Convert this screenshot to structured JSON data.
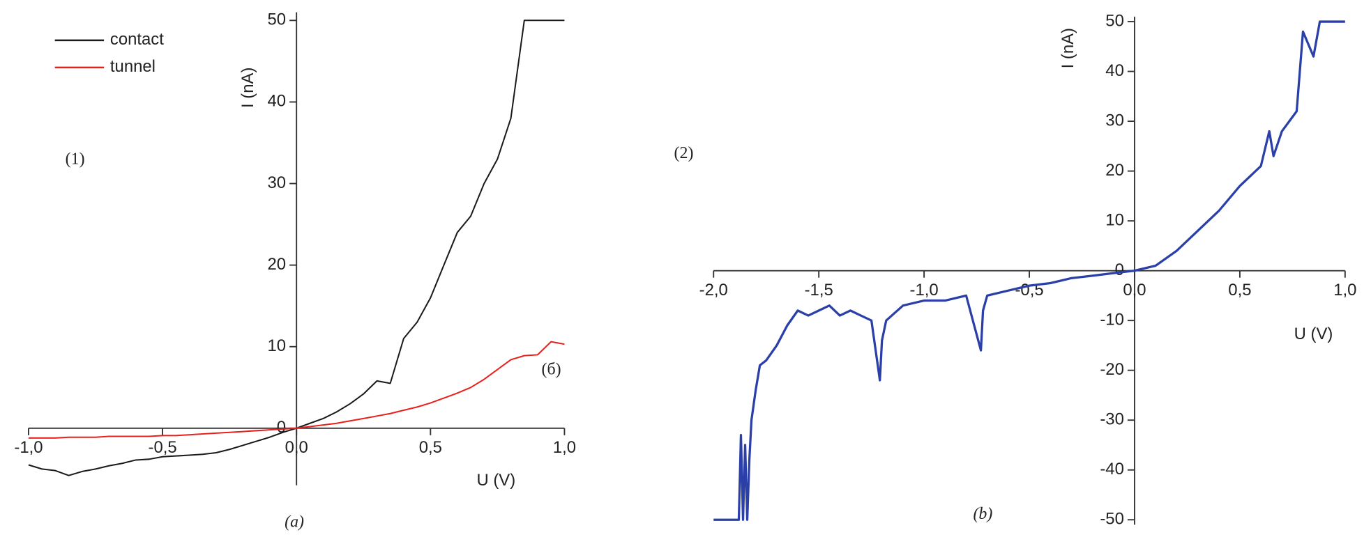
{
  "chart_data": [
    {
      "type": "line",
      "xlabel": "U (V)",
      "ylabel": "I (nA)",
      "annotations": [
        "(1)",
        "(a)",
        "(б)"
      ],
      "x": [
        -1.0,
        -0.95,
        -0.9,
        -0.85,
        -0.8,
        -0.75,
        -0.7,
        -0.65,
        -0.6,
        -0.55,
        -0.5,
        -0.45,
        -0.4,
        -0.35,
        -0.3,
        -0.25,
        -0.2,
        -0.15,
        -0.1,
        -0.05,
        0,
        0.05,
        0.1,
        0.15,
        0.2,
        0.25,
        0.3,
        0.35,
        0.4,
        0.45,
        0.5,
        0.55,
        0.6,
        0.65,
        0.7,
        0.75,
        0.8,
        0.85,
        0.9,
        0.95,
        1.0
      ],
      "series": [
        {
          "name": "contact",
          "color": "#1a1a1a",
          "values": [
            -4.5,
            -5.0,
            -5.2,
            -5.8,
            -5.3,
            -5.0,
            -4.6,
            -4.3,
            -3.9,
            -3.8,
            -3.5,
            -3.4,
            -3.3,
            -3.2,
            -3.0,
            -2.6,
            -2.1,
            -1.6,
            -1.1,
            -0.5,
            0,
            0.6,
            1.2,
            2.0,
            3.0,
            4.2,
            5.8,
            5.5,
            11,
            13,
            16,
            20,
            24,
            26,
            30,
            33,
            38,
            50,
            50,
            50,
            50
          ]
        },
        {
          "name": "tunnel",
          "color": "#e8201c",
          "values": [
            -1.2,
            -1.2,
            -1.2,
            -1.1,
            -1.1,
            -1.1,
            -1.0,
            -1.0,
            -1.0,
            -1.0,
            -0.9,
            -0.9,
            -0.8,
            -0.7,
            -0.6,
            -0.5,
            -0.4,
            -0.3,
            -0.2,
            -0.1,
            0,
            0.2,
            0.4,
            0.6,
            0.9,
            1.2,
            1.5,
            1.8,
            2.2,
            2.6,
            3.1,
            3.7,
            4.3,
            5.0,
            6.0,
            7.2,
            8.4,
            8.9,
            9.0,
            10.6,
            10.3
          ]
        }
      ],
      "xlim": [
        -1.0,
        1.0
      ],
      "xticks": [
        {
          "value": -1.0,
          "label": "-1,0"
        },
        {
          "value": -0.5,
          "label": "-0,5"
        },
        {
          "value": 0,
          "label": "0,0"
        },
        {
          "value": 0.5,
          "label": "0,5"
        },
        {
          "value": 1.0,
          "label": "1,0"
        }
      ],
      "ylim": [
        -7,
        51
      ],
      "yticks": [
        0,
        10,
        20,
        30,
        40,
        50
      ],
      "legend": "top-left"
    },
    {
      "type": "line",
      "xlabel": "U (V)",
      "ylabel": "I (nA)",
      "annotations": [
        "(2)",
        "(b)"
      ],
      "x": [
        -2.0,
        -1.88,
        -1.87,
        -1.86,
        -1.85,
        -1.84,
        -1.83,
        -1.82,
        -1.8,
        -1.78,
        -1.75,
        -1.7,
        -1.65,
        -1.6,
        -1.55,
        -1.5,
        -1.45,
        -1.4,
        -1.35,
        -1.3,
        -1.25,
        -1.21,
        -1.2,
        -1.18,
        -1.1,
        -1.0,
        -0.9,
        -0.8,
        -0.73,
        -0.72,
        -0.7,
        -0.6,
        -0.5,
        -0.4,
        -0.3,
        -0.2,
        -0.1,
        0.0,
        0.1,
        0.2,
        0.3,
        0.4,
        0.5,
        0.6,
        0.64,
        0.66,
        0.7,
        0.77,
        0.8,
        0.83,
        0.85,
        0.88,
        1.0
      ],
      "color": "#2a3fa8",
      "values": [
        -50,
        -50,
        -33,
        -50,
        -35,
        -50,
        -38,
        -30,
        -24,
        -19,
        -18,
        -15,
        -11,
        -8,
        -9,
        -8,
        -7,
        -9,
        -8,
        -9,
        -10,
        -22,
        -14,
        -10,
        -7,
        -6,
        -6,
        -5,
        -16,
        -8,
        -5,
        -4,
        -3,
        -2.5,
        -1.5,
        -1,
        -0.5,
        0,
        1,
        4,
        8,
        12,
        17,
        21,
        28,
        23,
        28,
        32,
        48,
        45,
        43,
        50,
        50
      ],
      "xlim": [
        -2.0,
        1.0
      ],
      "xticks": [
        {
          "value": -2.0,
          "label": "-2,0"
        },
        {
          "value": -1.5,
          "label": "-1,5"
        },
        {
          "value": -1.0,
          "label": "-1,0"
        },
        {
          "value": -0.5,
          "label": "-0,5"
        },
        {
          "value": 0,
          "label": "0,0"
        },
        {
          "value": 0.5,
          "label": "0,5"
        },
        {
          "value": 1.0,
          "label": "1,0"
        }
      ],
      "ylim": [
        -51,
        51
      ],
      "yticks": [
        -50,
        -40,
        -30,
        -20,
        -10,
        0,
        10,
        20,
        30,
        40,
        50
      ]
    }
  ]
}
